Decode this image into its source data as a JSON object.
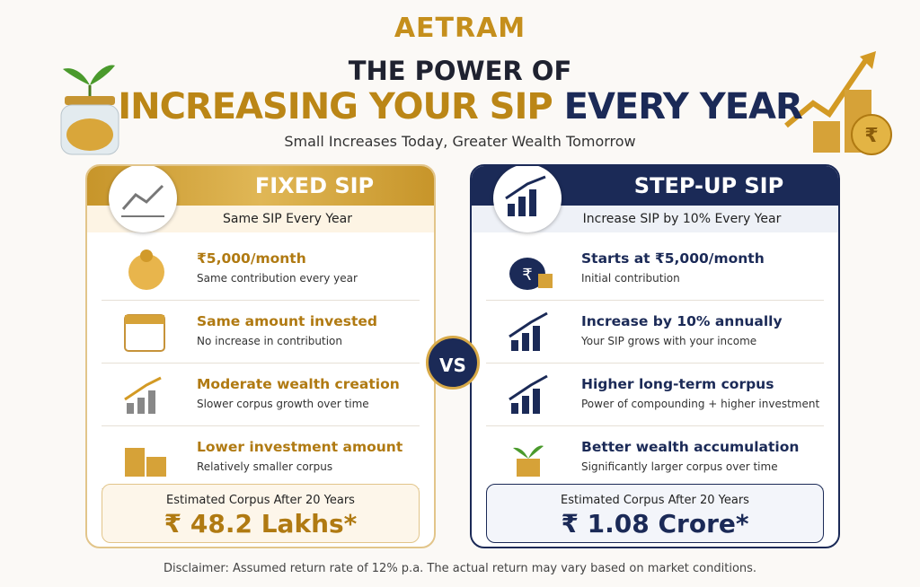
{
  "brand": "AETRAM",
  "header": {
    "title_line1": "THE POWER OF",
    "title_highlight": "INCREASING YOUR SIP",
    "title_rest": "EVERY YEAR",
    "subtitle": "Small Increases Today, Greater Wealth Tomorrow"
  },
  "left_card": {
    "title": "FIXED SIP",
    "subtitle": "Same SIP Every Year",
    "items": [
      {
        "title": "₹5,000/month",
        "desc": "Same contribution every year"
      },
      {
        "title": "Same amount invested",
        "desc": "No increase in contribution"
      },
      {
        "title": "Moderate wealth creation",
        "desc": "Slower corpus growth over time"
      },
      {
        "title": "Lower investment amount",
        "desc": "Relatively smaller corpus"
      }
    ],
    "corpus_label": "Estimated Corpus After 20 Years",
    "corpus_value": "₹ 48.2 Lakhs*"
  },
  "vs": "VS",
  "right_card": {
    "title": "STEP-UP SIP",
    "subtitle": "Increase SIP by 10% Every Year",
    "items": [
      {
        "title": "Starts at ₹5,000/month",
        "desc": "Initial contribution"
      },
      {
        "title": "Increase by 10% annually",
        "desc": "Your SIP grows with your income"
      },
      {
        "title": "Higher long-term corpus",
        "desc": "Power of compounding + higher investment"
      },
      {
        "title": "Better wealth accumulation",
        "desc": "Significantly larger corpus over time"
      }
    ],
    "corpus_label": "Estimated Corpus After 20 Years",
    "corpus_value": "₹ 1.08 Crore*"
  },
  "disclaimer": "Disclaimer: Assumed return rate of 12% p.a. The actual return may vary based on market conditions."
}
